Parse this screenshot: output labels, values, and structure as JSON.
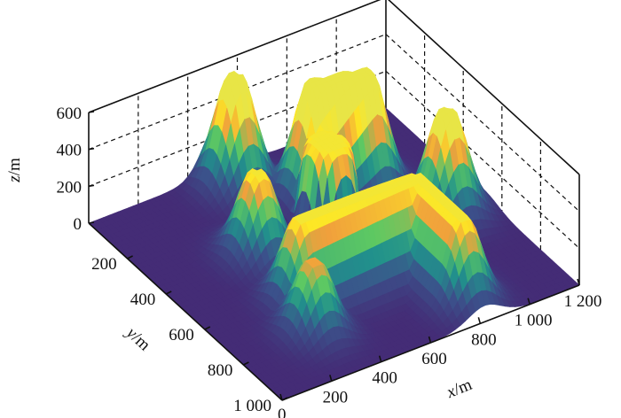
{
  "chart_data": {
    "type": "surface",
    "colormap": "viridis",
    "colormap_colors": [
      "#440154",
      "#3b528b",
      "#21918c",
      "#5ec962",
      "#fde725"
    ],
    "grid": true,
    "axes": {
      "x": {
        "label_var": "x",
        "label_unit": "/m",
        "range": [
          0,
          1200
        ],
        "ticks": [
          0,
          200,
          400,
          600,
          800,
          1000,
          1200
        ],
        "tick_labels": [
          "0",
          "200",
          "400",
          "600",
          "800",
          "1 000",
          "1 200"
        ]
      },
      "y": {
        "label_var": "y",
        "label_unit": "/m",
        "range": [
          0,
          1000
        ],
        "ticks": [
          200,
          400,
          600,
          800,
          1000
        ],
        "tick_labels": [
          "200",
          "400",
          "600",
          "800",
          "1 000"
        ]
      },
      "z": {
        "label_var": "z",
        "label_unit": "/m",
        "range": [
          0,
          600
        ],
        "ticks": [
          0,
          200,
          400,
          600
        ],
        "tick_labels": [
          "0",
          "200",
          "400",
          "600"
        ]
      }
    },
    "features": [
      {
        "kind": "peak",
        "x": 530,
        "y": 80,
        "height": 600
      },
      {
        "kind": "ridge",
        "from": [
          720,
          245
        ],
        "to": [
          900,
          280
        ],
        "height": 620
      },
      {
        "kind": "peak",
        "x": 1050,
        "y": 510,
        "height": 550
      },
      {
        "kind": "plateau",
        "x": 675,
        "y": 375,
        "height": 450
      },
      {
        "kind": "peak",
        "x": 377,
        "y": 390,
        "height": 450
      },
      {
        "kind": "ridge",
        "from": [
          360,
          640
        ],
        "to": [
          816,
          652
        ],
        "height": 450
      },
      {
        "kind": "ridge",
        "from": [
          816,
          652
        ],
        "to": [
          818,
          880
        ],
        "height": 450
      },
      {
        "kind": "peak",
        "x": 300,
        "y": 780,
        "height": 380
      }
    ]
  }
}
